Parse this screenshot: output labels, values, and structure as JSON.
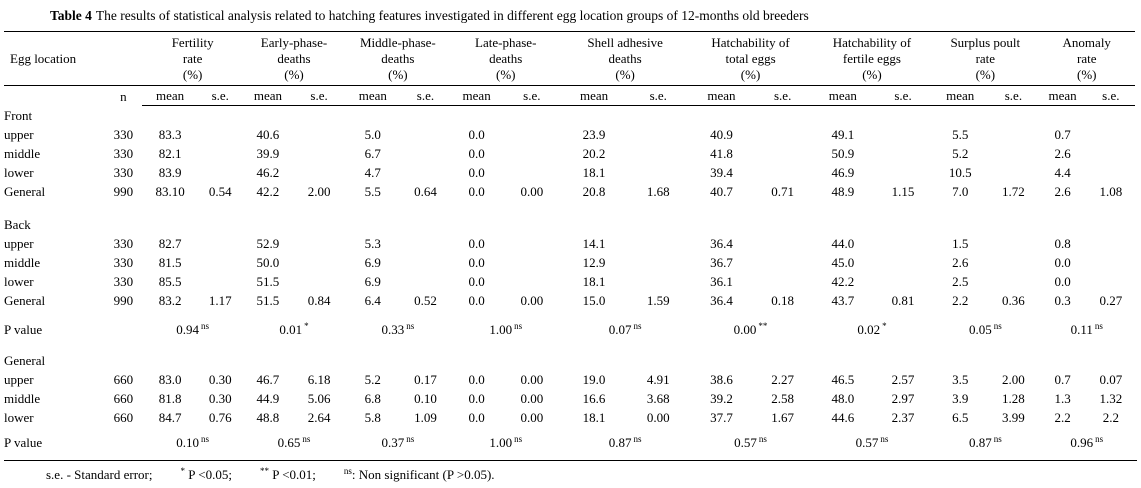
{
  "title": {
    "label": "Table 4",
    "text": "The results of statistical analysis related to hatching features investigated in different egg location groups of 12-months old breeders"
  },
  "table": {
    "row_header": "Egg location",
    "n_header": "n",
    "sub_headers": {
      "mean": "mean",
      "se": "s.e."
    },
    "features": [
      {
        "name": "fertility-rate",
        "lines": [
          "Fertility",
          "rate",
          "(%)"
        ]
      },
      {
        "name": "early-phase-deaths",
        "lines": [
          "Early-phase-",
          "deaths",
          "(%)"
        ]
      },
      {
        "name": "middle-phase-deaths",
        "lines": [
          "Middle-phase-",
          "deaths",
          "(%)"
        ]
      },
      {
        "name": "late-phase-deaths",
        "lines": [
          "Late-phase-",
          "deaths",
          "(%)"
        ]
      },
      {
        "name": "shell-adhesive-deaths",
        "lines": [
          "Shell adhesive",
          "deaths",
          "(%)"
        ]
      },
      {
        "name": "hatchability-total-eggs",
        "lines": [
          "Hatchability of",
          "total eggs",
          "(%)"
        ]
      },
      {
        "name": "hatchability-fertile-eggs",
        "lines": [
          "Hatchability of",
          "fertile eggs",
          "(%)"
        ]
      },
      {
        "name": "surplus-poult-rate",
        "lines": [
          "Surplus poult",
          "rate",
          "(%)"
        ]
      },
      {
        "name": "anomaly-rate",
        "lines": [
          "Anomaly",
          "rate",
          "(%)"
        ]
      }
    ],
    "sections": [
      {
        "type": "group",
        "label": "Front",
        "rows": [
          {
            "label": "upper",
            "n": "330",
            "values": [
              [
                "83.3",
                ""
              ],
              [
                "40.6",
                ""
              ],
              [
                "5.0",
                ""
              ],
              [
                "0.0",
                ""
              ],
              [
                "23.9",
                ""
              ],
              [
                "40.9",
                ""
              ],
              [
                "49.1",
                ""
              ],
              [
                "5.5",
                ""
              ],
              [
                "0.7",
                ""
              ]
            ]
          },
          {
            "label": "middle",
            "n": "330",
            "values": [
              [
                "82.1",
                ""
              ],
              [
                "39.9",
                ""
              ],
              [
                "6.7",
                ""
              ],
              [
                "0.0",
                ""
              ],
              [
                "20.2",
                ""
              ],
              [
                "41.8",
                ""
              ],
              [
                "50.9",
                ""
              ],
              [
                "5.2",
                ""
              ],
              [
                "2.6",
                ""
              ]
            ]
          },
          {
            "label": "lower",
            "n": "330",
            "values": [
              [
                "83.9",
                ""
              ],
              [
                "46.2",
                ""
              ],
              [
                "4.7",
                ""
              ],
              [
                "0.0",
                ""
              ],
              [
                "18.1",
                ""
              ],
              [
                "39.4",
                ""
              ],
              [
                "46.9",
                ""
              ],
              [
                "10.5",
                ""
              ],
              [
                "4.4",
                ""
              ]
            ]
          },
          {
            "label": "General",
            "n": "990",
            "values": [
              [
                "83.10",
                "0.54"
              ],
              [
                "42.2",
                "2.00"
              ],
              [
                "5.5",
                "0.64"
              ],
              [
                "0.0",
                "0.00"
              ],
              [
                "20.8",
                "1.68"
              ],
              [
                "40.7",
                "0.71"
              ],
              [
                "48.9",
                "1.15"
              ],
              [
                "7.0",
                "1.72"
              ],
              [
                "2.6",
                "1.08"
              ]
            ]
          }
        ]
      },
      {
        "type": "group",
        "label": "Back",
        "rows": [
          {
            "label": "upper",
            "n": "330",
            "values": [
              [
                "82.7",
                ""
              ],
              [
                "52.9",
                ""
              ],
              [
                "5.3",
                ""
              ],
              [
                "0.0",
                ""
              ],
              [
                "14.1",
                ""
              ],
              [
                "36.4",
                ""
              ],
              [
                "44.0",
                ""
              ],
              [
                "1.5",
                ""
              ],
              [
                "0.8",
                ""
              ]
            ]
          },
          {
            "label": "middle",
            "n": "330",
            "values": [
              [
                "81.5",
                ""
              ],
              [
                "50.0",
                ""
              ],
              [
                "6.9",
                ""
              ],
              [
                "0.0",
                ""
              ],
              [
                "12.9",
                ""
              ],
              [
                "36.7",
                ""
              ],
              [
                "45.0",
                ""
              ],
              [
                "2.6",
                ""
              ],
              [
                "0.0",
                ""
              ]
            ]
          },
          {
            "label": "lower",
            "n": "330",
            "values": [
              [
                "85.5",
                ""
              ],
              [
                "51.5",
                ""
              ],
              [
                "6.9",
                ""
              ],
              [
                "0.0",
                ""
              ],
              [
                "18.1",
                ""
              ],
              [
                "36.1",
                ""
              ],
              [
                "42.2",
                ""
              ],
              [
                "2.5",
                ""
              ],
              [
                "0.0",
                ""
              ]
            ]
          },
          {
            "label": "General",
            "n": "990",
            "values": [
              [
                "83.2",
                "1.17"
              ],
              [
                "51.5",
                "0.84"
              ],
              [
                "6.4",
                "0.52"
              ],
              [
                "0.0",
                "0.00"
              ],
              [
                "15.0",
                "1.59"
              ],
              [
                "36.4",
                "0.18"
              ],
              [
                "43.7",
                "0.81"
              ],
              [
                "2.2",
                "0.36"
              ],
              [
                "0.3",
                "0.27"
              ]
            ]
          }
        ]
      },
      {
        "type": "pvalue",
        "label": "P value",
        "values": [
          {
            "v": "0.94",
            "sup": "ns"
          },
          {
            "v": "0.01",
            "sup": "*"
          },
          {
            "v": "0.33",
            "sup": "ns"
          },
          {
            "v": "1.00",
            "sup": "ns"
          },
          {
            "v": "0.07",
            "sup": "ns"
          },
          {
            "v": "0.00",
            "sup": "**"
          },
          {
            "v": "0.02",
            "sup": "*"
          },
          {
            "v": "0.05",
            "sup": "ns"
          },
          {
            "v": "0.11",
            "sup": "ns"
          }
        ]
      },
      {
        "type": "group",
        "label": "General",
        "rows": [
          {
            "label": "upper",
            "n": "660",
            "values": [
              [
                "83.0",
                "0.30"
              ],
              [
                "46.7",
                "6.18"
              ],
              [
                "5.2",
                "0.17"
              ],
              [
                "0.0",
                "0.00"
              ],
              [
                "19.0",
                "4.91"
              ],
              [
                "38.6",
                "2.27"
              ],
              [
                "46.5",
                "2.57"
              ],
              [
                "3.5",
                "2.00"
              ],
              [
                "0.7",
                "0.07"
              ]
            ]
          },
          {
            "label": "middle",
            "n": "660",
            "values": [
              [
                "81.8",
                "0.30"
              ],
              [
                "44.9",
                "5.06"
              ],
              [
                "6.8",
                "0.10"
              ],
              [
                "0.0",
                "0.00"
              ],
              [
                "16.6",
                "3.68"
              ],
              [
                "39.2",
                "2.58"
              ],
              [
                "48.0",
                "2.97"
              ],
              [
                "3.9",
                "1.28"
              ],
              [
                "1.3",
                "1.32"
              ]
            ]
          },
          {
            "label": "lower",
            "n": "660",
            "values": [
              [
                "84.7",
                "0.76"
              ],
              [
                "48.8",
                "2.64"
              ],
              [
                "5.8",
                "1.09"
              ],
              [
                "0.0",
                "0.00"
              ],
              [
                "18.1",
                "0.00"
              ],
              [
                "37.7",
                "1.67"
              ],
              [
                "44.6",
                "2.37"
              ],
              [
                "6.5",
                "3.99"
              ],
              [
                "2.2",
                "2.2"
              ]
            ]
          }
        ]
      },
      {
        "type": "pvalue",
        "label": "P value",
        "values": [
          {
            "v": "0.10",
            "sup": "ns"
          },
          {
            "v": "0.65",
            "sup": "ns"
          },
          {
            "v": "0.37",
            "sup": "ns"
          },
          {
            "v": "1.00",
            "sup": "ns"
          },
          {
            "v": "0.87",
            "sup": "ns"
          },
          {
            "v": "0.57",
            "sup": "ns"
          },
          {
            "v": "0.57",
            "sup": "ns"
          },
          {
            "v": "0.87",
            "sup": "ns"
          },
          {
            "v": "0.96",
            "sup": "ns"
          }
        ]
      }
    ],
    "footnote": {
      "parts": [
        {
          "sup": "",
          "text": "s.e. - Standard error;"
        },
        {
          "sup": "*",
          "text": " P <0.05;"
        },
        {
          "sup": "**",
          "text": " P <0.01;"
        },
        {
          "sup": "ns",
          "text": ": Non significant (P >0.05)."
        }
      ]
    }
  }
}
